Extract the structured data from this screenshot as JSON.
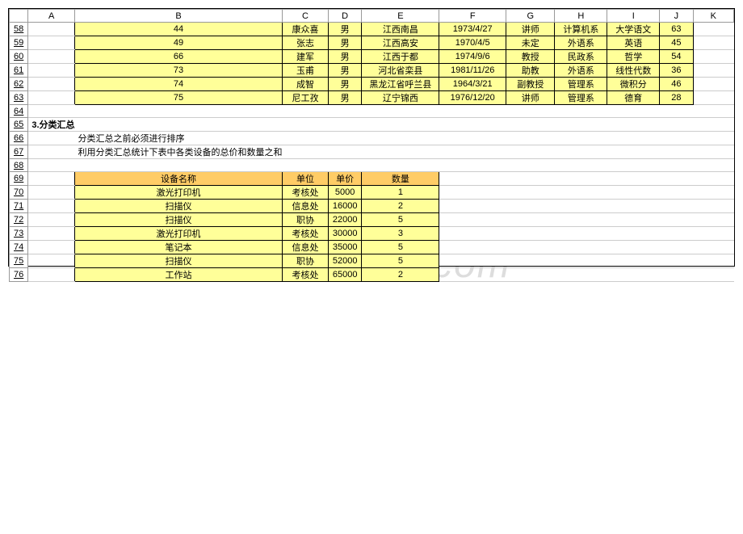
{
  "columns": [
    "A",
    "B",
    "C",
    "D",
    "E",
    "F",
    "G",
    "H",
    "I",
    "J",
    "K"
  ],
  "rownums": [
    "58",
    "59",
    "60",
    "61",
    "62",
    "63",
    "64",
    "65",
    "66",
    "67",
    "68",
    "69",
    "70",
    "71",
    "72",
    "73",
    "74",
    "75",
    "76"
  ],
  "table1": {
    "rows": [
      {
        "b": "44",
        "c": "康众喜",
        "d": "男",
        "e": "江西南昌",
        "f": "1973/4/27",
        "g": "讲师",
        "h": "计算机系",
        "i": "大学语文",
        "j": "63"
      },
      {
        "b": "49",
        "c": "张志",
        "d": "男",
        "e": "江西高安",
        "f": "1970/4/5",
        "g": "未定",
        "h": "外语系",
        "i": "英语",
        "j": "45"
      },
      {
        "b": "66",
        "c": "建军",
        "d": "男",
        "e": "江西于都",
        "f": "1974/9/6",
        "g": "教授",
        "h": "民政系",
        "i": "哲学",
        "j": "54"
      },
      {
        "b": "73",
        "c": "玉甫",
        "d": "男",
        "e": "河北省栾县",
        "f": "1981/11/26",
        "g": "助教",
        "h": "外语系",
        "i": "线性代数",
        "j": "36"
      },
      {
        "b": "74",
        "c": "成智",
        "d": "男",
        "e": "黑龙江省呼兰县",
        "f": "1964/3/21",
        "g": "副教授",
        "h": "管理系",
        "i": "微积分",
        "j": "46"
      },
      {
        "b": "75",
        "c": "尼工孜",
        "d": "男",
        "e": "辽宁锦西",
        "f": "1976/12/20",
        "g": "讲师",
        "h": "管理系",
        "i": "德育",
        "j": "28"
      }
    ]
  },
  "section": {
    "title": "3.分类汇总",
    "note1": "分类汇总之前必须进行排序",
    "note2": "利用分类汇总统计下表中各类设备的总价和数量之和"
  },
  "table2": {
    "headers": {
      "b": "设备名称",
      "c": "单位",
      "d": "单价",
      "e": "数量"
    },
    "rows": [
      {
        "b": "激光打印机",
        "c": "考核处",
        "d": "5000",
        "e": "1"
      },
      {
        "b": "扫描仪",
        "c": "信息处",
        "d": "16000",
        "e": "2"
      },
      {
        "b": "扫描仪",
        "c": "职协",
        "d": "22000",
        "e": "5"
      },
      {
        "b": "激光打印机",
        "c": "考核处",
        "d": "30000",
        "e": "3"
      },
      {
        "b": "笔记本",
        "c": "信息处",
        "d": "35000",
        "e": "5"
      },
      {
        "b": "扫描仪",
        "c": "职协",
        "d": "52000",
        "e": "5"
      },
      {
        "b": "工作站",
        "c": "考核处",
        "d": "65000",
        "e": "2"
      }
    ]
  },
  "watermark": "www.bdocx.com"
}
